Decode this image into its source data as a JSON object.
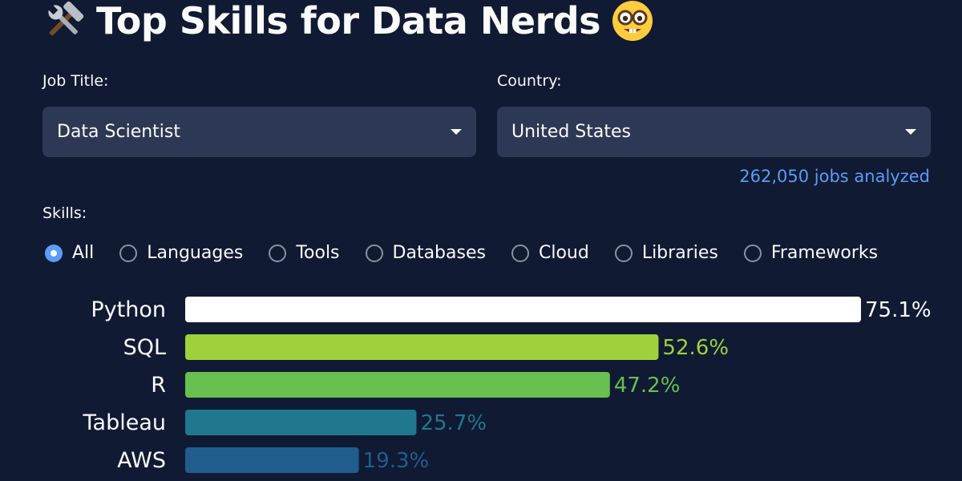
{
  "header": {
    "title": "Top Skills for Data Nerds",
    "left_icon": "hammer-and-wrench-icon",
    "right_icon": "nerd-face-icon"
  },
  "filters": {
    "job_title_label": "Job Title:",
    "job_title_value": "Data Scientist",
    "country_label": "Country:",
    "country_value": "United States"
  },
  "summary": {
    "jobs_analyzed": "262,050 jobs analyzed"
  },
  "skills_filter": {
    "label": "Skills:",
    "options": [
      "All",
      "Languages",
      "Tools",
      "Databases",
      "Cloud",
      "Libraries",
      "Frameworks"
    ],
    "selected": "All"
  },
  "colors": {
    "background": "#101a33",
    "accent": "#5b9cf7",
    "select_bg": "#2d3854"
  },
  "chart_data": {
    "type": "bar",
    "orientation": "horizontal",
    "categories": [
      "Python",
      "SQL",
      "R",
      "Tableau",
      "AWS"
    ],
    "values": [
      75.1,
      52.6,
      47.2,
      25.7,
      19.3
    ],
    "labels": [
      "75.1%",
      "52.6%",
      "47.2%",
      "25.7%",
      "19.3%"
    ],
    "colors": [
      "#ffffff",
      "#9fd13c",
      "#67c04f",
      "#1f788d",
      "#205d8e"
    ],
    "title": "",
    "xlabel": "",
    "ylabel": "",
    "xlim": [
      0,
      75.1
    ],
    "grid": false
  }
}
